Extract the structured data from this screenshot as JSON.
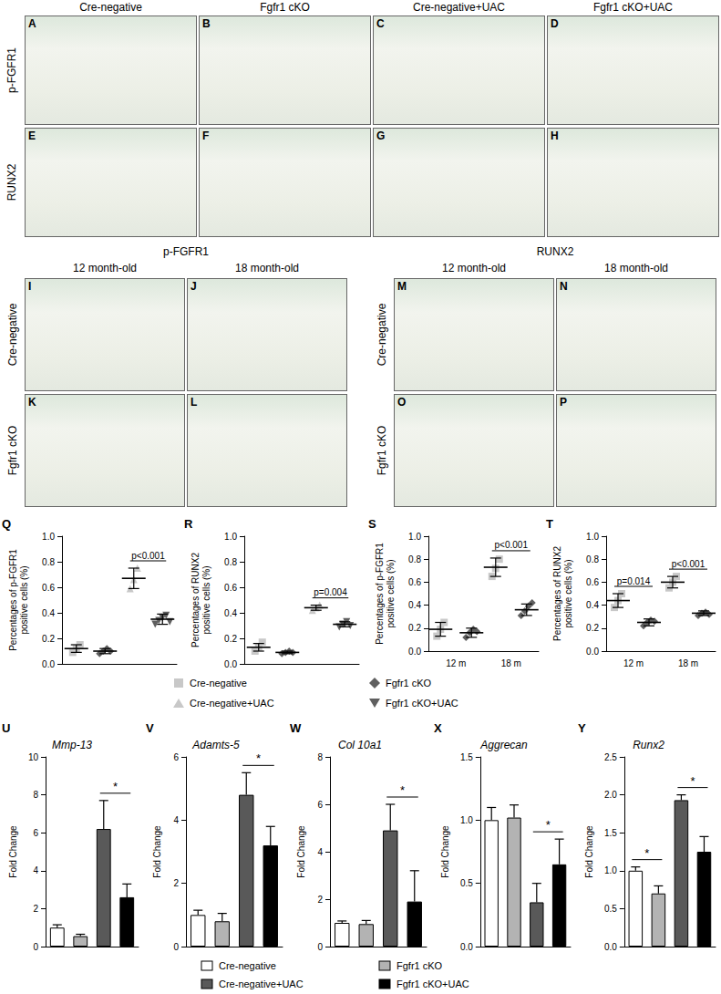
{
  "histology": {
    "top": {
      "columns": [
        "Cre-negative",
        "Fgfr1 cKO",
        "Cre-negative+UAC",
        "Fgfr1 cKO+UAC"
      ],
      "rows": [
        {
          "label": "p-FGFR1",
          "panels": [
            "A",
            "B",
            "C",
            "D"
          ]
        },
        {
          "label": "RUNX2",
          "panels": [
            "E",
            "F",
            "G",
            "H"
          ]
        }
      ]
    },
    "aging": [
      {
        "title": "p-FGFR1",
        "columns": [
          "12 month-old",
          "18 month-old"
        ],
        "rows": [
          {
            "label": "Cre-negative",
            "panels": [
              "I",
              "J"
            ]
          },
          {
            "label": "Fgfr1 cKO",
            "panels": [
              "K",
              "L"
            ]
          }
        ]
      },
      {
        "title": "RUNX2",
        "columns": [
          "12 month-old",
          "18 month-old"
        ],
        "rows": [
          {
            "label": "Cre-negative",
            "panels": [
              "M",
              "N"
            ]
          },
          {
            "label": "Fgfr1 cKO",
            "panels": [
              "O",
              "P"
            ]
          }
        ]
      }
    ]
  },
  "chart_data": [
    {
      "type": "scatter",
      "panel": "Q",
      "y_label": "Percentages of p-FGFR1\npositive cells (%)",
      "categories": [
        null,
        null,
        null,
        null
      ],
      "tick_labels": "y",
      "grid": false,
      "legend": "bottom",
      "ylim": [
        0,
        1
      ],
      "yticks": [
        {
          "value": 0,
          "label": "0.0"
        },
        0.2,
        0.4,
        0.6,
        0.8,
        {
          "value": 1,
          "label": "1.0"
        }
      ],
      "series": [
        {
          "name": "Cre-negative",
          "color": "#c8c8c8",
          "marker": "square",
          "values": [
            0.12,
            null,
            null,
            null
          ],
          "errors": [
            0.03,
            null,
            null,
            null
          ],
          "points": [
            [
              0.09,
              0.12,
              0.15
            ],
            null,
            null,
            null
          ]
        },
        {
          "name": "Fgfr1 cKO",
          "color": "#5f5f5f",
          "marker": "diamond",
          "values": [
            null,
            0.1,
            null,
            null
          ],
          "errors": [
            null,
            0.02,
            null,
            null
          ],
          "points": [
            null,
            [
              0.08,
              0.1,
              0.12,
              0.1
            ],
            null,
            null
          ]
        },
        {
          "name": "Cre-negative+UAC",
          "color": "#c8c8c8",
          "marker": "triangle",
          "values": [
            null,
            null,
            0.67,
            null
          ],
          "errors": [
            null,
            null,
            0.08,
            null
          ],
          "points": [
            null,
            null,
            [
              0.59,
              0.66,
              0.75
            ],
            null
          ]
        },
        {
          "name": "Fgfr1 cKO+UAC",
          "color": "#5f5f5f",
          "marker": "triangle-down",
          "values": [
            null,
            null,
            null,
            0.35
          ],
          "errors": [
            null,
            null,
            null,
            0.04
          ],
          "points": [
            null,
            null,
            null,
            [
              0.31,
              0.34,
              0.36,
              0.38,
              0.33
            ]
          ]
        }
      ],
      "annotations": [
        {
          "from": 2,
          "to": 3,
          "label": "p<0.001"
        }
      ]
    },
    {
      "type": "scatter",
      "panel": "R",
      "y_label": "Percentages of RUNX2\npositive cells (%)",
      "categories": [
        null,
        null,
        null,
        null
      ],
      "tick_labels": "y",
      "grid": false,
      "ylim": [
        0,
        1
      ],
      "yticks": [
        {
          "value": 0,
          "label": "0.0"
        },
        0.2,
        0.4,
        0.6,
        0.8,
        {
          "value": 1,
          "label": "1.0"
        }
      ],
      "series": [
        {
          "name": "Cre-negative",
          "color": "#c8c8c8",
          "marker": "square",
          "values": [
            0.13,
            null,
            null,
            null
          ],
          "errors": [
            0.03,
            null,
            null,
            null
          ],
          "points": [
            [
              0.1,
              0.13,
              0.17
            ],
            null,
            null,
            null
          ]
        },
        {
          "name": "Fgfr1 cKO",
          "color": "#5f5f5f",
          "marker": "diamond",
          "values": [
            null,
            0.09,
            null,
            null
          ],
          "errors": [
            null,
            0.01,
            null,
            null
          ],
          "points": [
            null,
            [
              0.08,
              0.09,
              0.1,
              0.09
            ],
            null,
            null
          ]
        },
        {
          "name": "Cre-negative+UAC",
          "color": "#c8c8c8",
          "marker": "triangle",
          "values": [
            null,
            null,
            0.44,
            null
          ],
          "errors": [
            null,
            null,
            0.02,
            null
          ],
          "points": [
            null,
            null,
            [
              0.42,
              0.44,
              0.46
            ],
            null
          ]
        },
        {
          "name": "Fgfr1 cKO+UAC",
          "color": "#5f5f5f",
          "marker": "triangle-down",
          "values": [
            null,
            null,
            null,
            0.31
          ],
          "errors": [
            null,
            null,
            null,
            0.02
          ],
          "points": [
            null,
            null,
            null,
            [
              0.29,
              0.31,
              0.33,
              0.3
            ]
          ]
        }
      ],
      "annotations": [
        {
          "from": 2,
          "to": 3,
          "label": "p=0.004"
        }
      ]
    },
    {
      "type": "scatter",
      "panel": "S",
      "y_label": "Percentages of p-FGFR1\npositive cells (%)",
      "categories": [
        "12 m",
        "18 m"
      ],
      "grid": false,
      "ylim": [
        0,
        1
      ],
      "yticks": [
        {
          "value": 0,
          "label": "0.0"
        },
        0.2,
        0.4,
        0.6,
        0.8,
        {
          "value": 1,
          "label": "1.0"
        }
      ],
      "series": [
        {
          "name": "Cre-negative",
          "color": "#c8c8c8",
          "marker": "square",
          "values": [
            0.19,
            0.73
          ],
          "errors": [
            0.06,
            0.08
          ],
          "points": [
            [
              0.13,
              0.19,
              0.25
            ],
            [
              0.65,
              0.72,
              0.8
            ]
          ]
        },
        {
          "name": "Fgfr1 cKO",
          "color": "#5f5f5f",
          "marker": "diamond",
          "values": [
            0.16,
            0.36
          ],
          "errors": [
            0.04,
            0.05
          ],
          "points": [
            [
              0.12,
              0.16,
              0.19,
              0.17
            ],
            [
              0.31,
              0.35,
              0.39,
              0.42
            ]
          ]
        }
      ],
      "annotations": [
        {
          "category": 1,
          "label": "p<0.001"
        }
      ]
    },
    {
      "type": "scatter",
      "panel": "T",
      "y_label": "Percentages of RUNX2\npositive cells (%)",
      "categories": [
        "12 m",
        "18 m"
      ],
      "grid": false,
      "ylim": [
        0,
        1
      ],
      "yticks": [
        {
          "value": 0,
          "label": "0.0"
        },
        0.2,
        0.4,
        0.6,
        0.8,
        {
          "value": 1,
          "label": "1.0"
        }
      ],
      "series": [
        {
          "name": "Cre-negative",
          "color": "#c8c8c8",
          "marker": "square",
          "values": [
            0.44,
            0.6
          ],
          "errors": [
            0.06,
            0.05
          ],
          "points": [
            [
              0.38,
              0.44,
              0.5
            ],
            [
              0.55,
              0.6,
              0.65
            ]
          ]
        },
        {
          "name": "Fgfr1 cKO",
          "color": "#5f5f5f",
          "marker": "diamond",
          "values": [
            0.25,
            0.33
          ],
          "errors": [
            0.03,
            0.02
          ],
          "points": [
            [
              0.22,
              0.25,
              0.27,
              0.26
            ],
            [
              0.31,
              0.33,
              0.34,
              0.32
            ]
          ]
        }
      ],
      "annotations": [
        {
          "category": 0,
          "label": "p=0.014"
        },
        {
          "category": 1,
          "label": "p<0.001"
        }
      ]
    },
    {
      "type": "bar",
      "panel": "U",
      "title": "Mmp-13",
      "y_label": "Fold Change",
      "categories": [
        null,
        null,
        null,
        null
      ],
      "tick_labels": "y",
      "grid": false,
      "legend": "bottom",
      "ylim": [
        0,
        10
      ],
      "yticks": [
        0,
        2,
        4,
        6,
        8,
        10
      ],
      "series": [
        {
          "name": "Cre-negative",
          "color": "#ffffff",
          "values": [
            1.0,
            null,
            null,
            null
          ],
          "errors": [
            0.15,
            null,
            null,
            null
          ]
        },
        {
          "name": "Fgfr1 cKO",
          "color": "#b3b3b3",
          "values": [
            null,
            0.55,
            null,
            null
          ],
          "errors": [
            null,
            0.1,
            null,
            null
          ]
        },
        {
          "name": "Cre-negative+UAC",
          "color": "#595959",
          "values": [
            null,
            null,
            6.2,
            null
          ],
          "errors": [
            null,
            null,
            1.5,
            null
          ]
        },
        {
          "name": "Fgfr1 cKO+UAC",
          "color": "#000000",
          "values": [
            null,
            null,
            null,
            2.6
          ],
          "errors": [
            null,
            null,
            null,
            0.7
          ]
        }
      ],
      "annotations": [
        {
          "from": 2,
          "to": 3,
          "label": "*"
        }
      ]
    },
    {
      "type": "bar",
      "panel": "V",
      "title": "Adamts-5",
      "y_label": "Fold Change",
      "categories": [
        null,
        null,
        null,
        null
      ],
      "tick_labels": "y",
      "grid": false,
      "ylim": [
        0,
        6
      ],
      "yticks": [
        0,
        2,
        4,
        6
      ],
      "series": [
        {
          "name": "Cre-negative",
          "color": "#ffffff",
          "values": [
            1.0,
            null,
            null,
            null
          ],
          "errors": [
            0.15,
            null,
            null,
            null
          ]
        },
        {
          "name": "Fgfr1 cKO",
          "color": "#b3b3b3",
          "values": [
            null,
            0.8,
            null,
            null
          ],
          "errors": [
            null,
            0.25,
            null,
            null
          ]
        },
        {
          "name": "Cre-negative+UAC",
          "color": "#595959",
          "values": [
            null,
            null,
            4.8,
            null
          ],
          "errors": [
            null,
            null,
            0.7,
            null
          ]
        },
        {
          "name": "Fgfr1 cKO+UAC",
          "color": "#000000",
          "values": [
            null,
            null,
            null,
            3.2
          ],
          "errors": [
            null,
            null,
            null,
            0.6
          ]
        }
      ],
      "annotations": [
        {
          "from": 2,
          "to": 3,
          "label": "*"
        }
      ]
    },
    {
      "type": "bar",
      "panel": "W",
      "title": "Col 10a1",
      "y_label": "Fold Change",
      "categories": [
        null,
        null,
        null,
        null
      ],
      "tick_labels": "y",
      "grid": false,
      "ylim": [
        0,
        8
      ],
      "yticks": [
        0,
        2,
        4,
        6,
        8
      ],
      "series": [
        {
          "name": "Cre-negative",
          "color": "#ffffff",
          "values": [
            1.0,
            null,
            null,
            null
          ],
          "errors": [
            0.08,
            null,
            null,
            null
          ]
        },
        {
          "name": "Fgfr1 cKO",
          "color": "#b3b3b3",
          "values": [
            null,
            0.95,
            null,
            null
          ],
          "errors": [
            null,
            0.15,
            null,
            null
          ]
        },
        {
          "name": "Cre-negative+UAC",
          "color": "#595959",
          "values": [
            null,
            null,
            4.9,
            null
          ],
          "errors": [
            null,
            null,
            1.1,
            null
          ]
        },
        {
          "name": "Fgfr1 cKO+UAC",
          "color": "#000000",
          "values": [
            null,
            null,
            null,
            1.9
          ],
          "errors": [
            null,
            null,
            null,
            1.3
          ]
        }
      ],
      "annotations": [
        {
          "from": 2,
          "to": 3,
          "label": "*"
        }
      ]
    },
    {
      "type": "bar",
      "panel": "X",
      "title": "Aggrecan",
      "y_label": "Fold Change",
      "categories": [
        null,
        null,
        null,
        null
      ],
      "tick_labels": "y",
      "grid": false,
      "ylim": [
        0,
        1.5
      ],
      "yticks": [
        {
          "value": 0,
          "label": "0.0"
        },
        0.5,
        {
          "value": 1,
          "label": "1.0"
        },
        1.5
      ],
      "series": [
        {
          "name": "Cre-negative",
          "color": "#ffffff",
          "values": [
            1.0,
            null,
            null,
            null
          ],
          "errors": [
            0.1,
            null,
            null,
            null
          ]
        },
        {
          "name": "Fgfr1 cKO",
          "color": "#b3b3b3",
          "values": [
            null,
            1.02,
            null,
            null
          ],
          "errors": [
            null,
            0.1,
            null,
            null
          ]
        },
        {
          "name": "Cre-negative+UAC",
          "color": "#595959",
          "values": [
            null,
            null,
            0.35,
            null
          ],
          "errors": [
            null,
            null,
            0.15,
            null
          ]
        },
        {
          "name": "Fgfr1 cKO+UAC",
          "color": "#000000",
          "values": [
            null,
            null,
            null,
            0.65
          ],
          "errors": [
            null,
            null,
            null,
            0.2
          ]
        }
      ],
      "annotations": [
        {
          "from": 2,
          "to": 3,
          "label": "*"
        }
      ]
    },
    {
      "type": "bar",
      "panel": "Y",
      "title": "Runx2",
      "y_label": "Fold Change",
      "categories": [
        null,
        null,
        null,
        null
      ],
      "tick_labels": "y",
      "grid": false,
      "ylim": [
        0,
        2.5
      ],
      "yticks": [
        {
          "value": 0,
          "label": "0.0"
        },
        0.5,
        {
          "value": 1,
          "label": "1.0"
        },
        1.5,
        {
          "value": 2,
          "label": "2.0"
        },
        2.5
      ],
      "series": [
        {
          "name": "Cre-negative",
          "color": "#ffffff",
          "values": [
            1.0,
            null,
            null,
            null
          ],
          "errors": [
            0.05,
            null,
            null,
            null
          ]
        },
        {
          "name": "Fgfr1 cKO",
          "color": "#b3b3b3",
          "values": [
            null,
            0.7,
            null,
            null
          ],
          "errors": [
            null,
            0.1,
            null,
            null
          ]
        },
        {
          "name": "Cre-negative+UAC",
          "color": "#595959",
          "values": [
            null,
            null,
            1.93,
            null
          ],
          "errors": [
            null,
            null,
            0.07,
            null
          ]
        },
        {
          "name": "Fgfr1 cKO+UAC",
          "color": "#000000",
          "values": [
            null,
            null,
            null,
            1.25
          ],
          "errors": [
            null,
            null,
            null,
            0.2
          ]
        }
      ],
      "annotations": [
        {
          "from": 0,
          "to": 1,
          "label": "*"
        },
        {
          "from": 2,
          "to": 3,
          "label": "*"
        }
      ]
    }
  ]
}
